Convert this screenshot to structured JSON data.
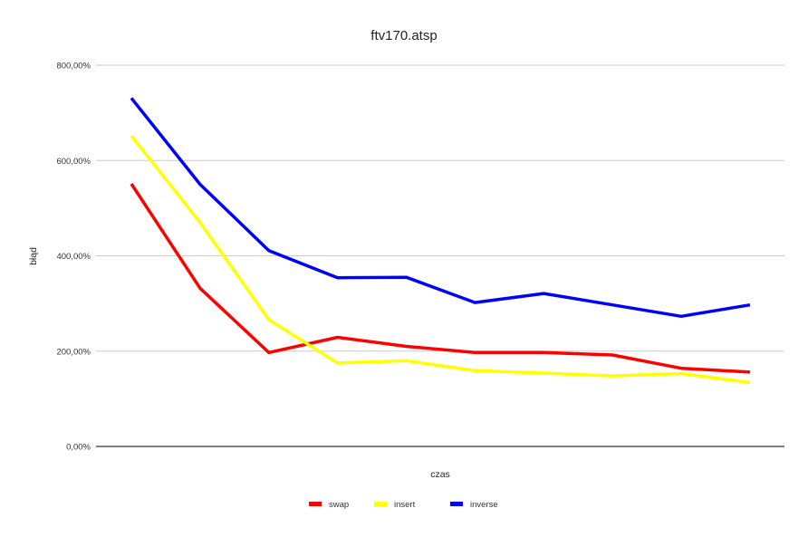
{
  "chart_data": {
    "type": "line",
    "title": "ftv170.atsp",
    "xlabel": "czas",
    "ylabel": "błąd",
    "ylim": [
      0,
      800
    ],
    "yticks": [
      0,
      200,
      400,
      600,
      800
    ],
    "ytick_labels": [
      "0,00%",
      "200,00%",
      "400,00%",
      "600,00%",
      "800,00%"
    ],
    "grid": true,
    "legend_position": "bottom",
    "x": [
      1,
      2,
      3,
      4,
      5,
      6,
      7,
      8,
      9,
      10
    ],
    "series": [
      {
        "name": "swap",
        "color": "#ff0000",
        "values": [
          551,
          332,
          197,
          229,
          210,
          197,
          197,
          192,
          164,
          156
        ]
      },
      {
        "name": "insert",
        "color": "#ffff00",
        "values": [
          652,
          470,
          266,
          175,
          180,
          159,
          154,
          148,
          153,
          134
        ]
      },
      {
        "name": "inverse",
        "color": "#0000ff",
        "values": [
          731,
          550,
          411,
          354,
          355,
          302,
          321,
          297,
          273,
          297
        ]
      }
    ]
  }
}
